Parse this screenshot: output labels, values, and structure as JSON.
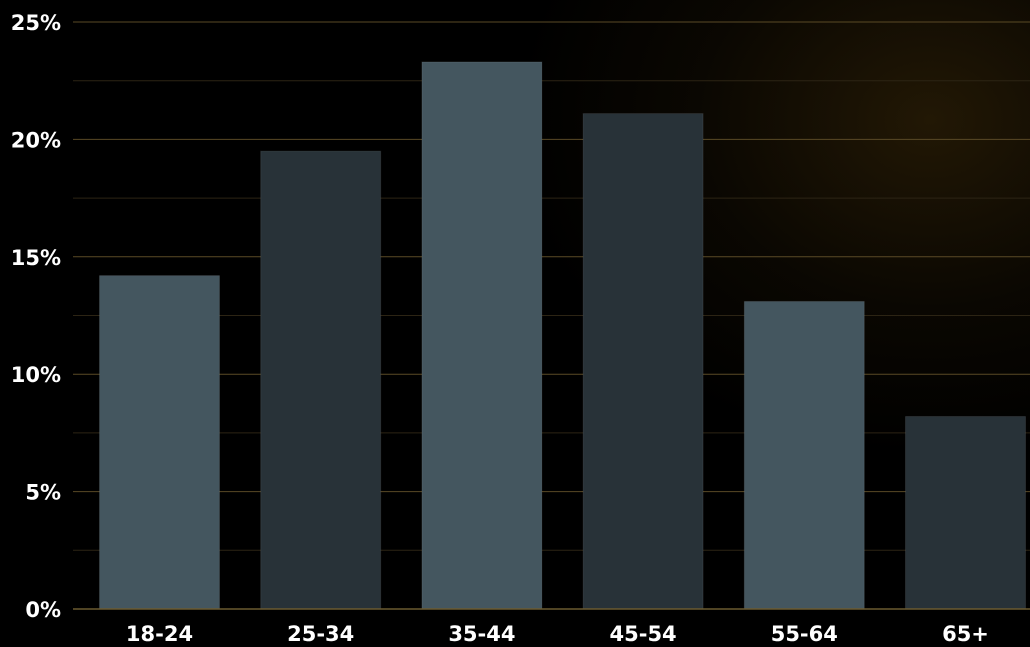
{
  "chart_data": {
    "type": "bar",
    "categories": [
      "18-24",
      "25-34",
      "35-44",
      "45-54",
      "55-64",
      "65+"
    ],
    "values": [
      14.2,
      19.5,
      23.3,
      21.1,
      13.1,
      8.2
    ],
    "ylim": [
      0,
      25
    ],
    "yticks": [
      0,
      5,
      10,
      15,
      20,
      25
    ],
    "ytick_labels": [
      "0%",
      "5%",
      "10%",
      "15%",
      "20%",
      "25%"
    ],
    "title": "",
    "xlabel": "",
    "ylabel": "",
    "grid": true,
    "colors": {
      "bar_light": "#44565f",
      "bar_dark": "#283238",
      "grid_major": "#5a4a26",
      "grid_minor": "#2c2414",
      "axis": "#6b5a30",
      "text": "#ffffff"
    }
  }
}
